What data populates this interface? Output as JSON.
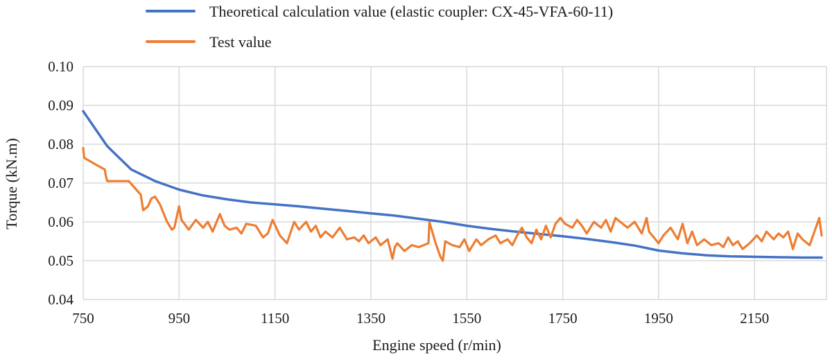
{
  "chart_data": {
    "type": "line",
    "title": "",
    "xlabel": "Engine speed (r/min)",
    "ylabel": "Torque  (kN.m)",
    "xlim": [
      750,
      2300
    ],
    "ylim": [
      0.04,
      0.1
    ],
    "x_ticks": [
      750,
      950,
      1150,
      1350,
      1550,
      1750,
      1950,
      2150
    ],
    "x_tick_labels": [
      "750",
      "950",
      "1150",
      "1350",
      "1550",
      "1750",
      "1950",
      "2150"
    ],
    "y_ticks": [
      0.04,
      0.05,
      0.06,
      0.07,
      0.08,
      0.09,
      0.1
    ],
    "y_tick_labels": [
      "0.04",
      "0.05",
      "0.06",
      "0.07",
      "0.08",
      "0.09",
      "0.10"
    ],
    "grid": true,
    "legend_position": "top",
    "series": [
      {
        "name": "Theoretical calculation value (elastic coupler: CX-45-VFA-60-11)",
        "color": "#4472c4",
        "x": [
          750,
          800,
          850,
          900,
          950,
          1000,
          1050,
          1100,
          1150,
          1200,
          1250,
          1300,
          1350,
          1400,
          1450,
          1500,
          1550,
          1600,
          1650,
          1700,
          1750,
          1800,
          1850,
          1900,
          1950,
          2000,
          2050,
          2100,
          2150,
          2200,
          2250,
          2290
        ],
        "y": [
          0.0885,
          0.0795,
          0.0735,
          0.0705,
          0.0683,
          0.0668,
          0.0658,
          0.065,
          0.0645,
          0.064,
          0.0634,
          0.0628,
          0.0622,
          0.0616,
          0.0608,
          0.06,
          0.059,
          0.0582,
          0.0575,
          0.0569,
          0.0563,
          0.0556,
          0.0548,
          0.0539,
          0.0526,
          0.0519,
          0.0514,
          0.0511,
          0.051,
          0.0509,
          0.0508,
          0.0508
        ]
      },
      {
        "name": "Test value",
        "color": "#ed7d31",
        "x": [
          750,
          752,
          780,
          795,
          797,
          800,
          845,
          870,
          875,
          885,
          892,
          900,
          910,
          925,
          935,
          940,
          950,
          955,
          970,
          985,
          1000,
          1010,
          1020,
          1035,
          1045,
          1055,
          1070,
          1080,
          1090,
          1110,
          1125,
          1135,
          1145,
          1160,
          1175,
          1190,
          1200,
          1215,
          1225,
          1235,
          1245,
          1255,
          1270,
          1285,
          1300,
          1315,
          1325,
          1335,
          1345,
          1360,
          1370,
          1385,
          1395,
          1400,
          1405,
          1420,
          1435,
          1450,
          1470,
          1472,
          1485,
          1495,
          1500,
          1505,
          1520,
          1535,
          1545,
          1555,
          1570,
          1580,
          1595,
          1610,
          1620,
          1635,
          1645,
          1655,
          1665,
          1675,
          1685,
          1695,
          1705,
          1715,
          1725,
          1735,
          1745,
          1755,
          1770,
          1780,
          1790,
          1800,
          1815,
          1830,
          1840,
          1850,
          1860,
          1870,
          1885,
          1900,
          1915,
          1925,
          1930,
          1940,
          1950,
          1960,
          1975,
          1990,
          2000,
          2010,
          2020,
          2030,
          2045,
          2060,
          2075,
          2085,
          2095,
          2105,
          2115,
          2125,
          2140,
          2155,
          2165,
          2175,
          2190,
          2200,
          2210,
          2220,
          2230,
          2240,
          2250,
          2265,
          2275,
          2285,
          2290
        ],
        "y": [
          0.079,
          0.0765,
          0.0745,
          0.0735,
          0.072,
          0.0705,
          0.0705,
          0.067,
          0.063,
          0.064,
          0.066,
          0.0665,
          0.0645,
          0.06,
          0.058,
          0.0585,
          0.064,
          0.0605,
          0.058,
          0.0605,
          0.0585,
          0.06,
          0.0575,
          0.062,
          0.059,
          0.058,
          0.0585,
          0.057,
          0.0595,
          0.059,
          0.056,
          0.057,
          0.0605,
          0.0565,
          0.0545,
          0.06,
          0.058,
          0.06,
          0.0575,
          0.059,
          0.056,
          0.0575,
          0.056,
          0.0585,
          0.0555,
          0.056,
          0.055,
          0.0565,
          0.0545,
          0.056,
          0.054,
          0.0555,
          0.0505,
          0.0535,
          0.0545,
          0.0525,
          0.054,
          0.0535,
          0.0545,
          0.06,
          0.0545,
          0.051,
          0.05,
          0.055,
          0.054,
          0.0535,
          0.0555,
          0.0525,
          0.0555,
          0.054,
          0.0555,
          0.0565,
          0.0545,
          0.0555,
          0.054,
          0.0565,
          0.0585,
          0.056,
          0.0545,
          0.058,
          0.0555,
          0.059,
          0.056,
          0.0595,
          0.061,
          0.0595,
          0.0585,
          0.0605,
          0.059,
          0.057,
          0.06,
          0.0585,
          0.0605,
          0.0575,
          0.061,
          0.06,
          0.0585,
          0.06,
          0.057,
          0.061,
          0.0575,
          0.056,
          0.0545,
          0.0565,
          0.0585,
          0.0555,
          0.0595,
          0.0545,
          0.0575,
          0.054,
          0.0555,
          0.054,
          0.0545,
          0.0535,
          0.056,
          0.054,
          0.055,
          0.053,
          0.0545,
          0.0565,
          0.055,
          0.0575,
          0.0555,
          0.057,
          0.056,
          0.0575,
          0.053,
          0.057,
          0.0555,
          0.054,
          0.0575,
          0.061,
          0.0565
        ]
      }
    ]
  }
}
